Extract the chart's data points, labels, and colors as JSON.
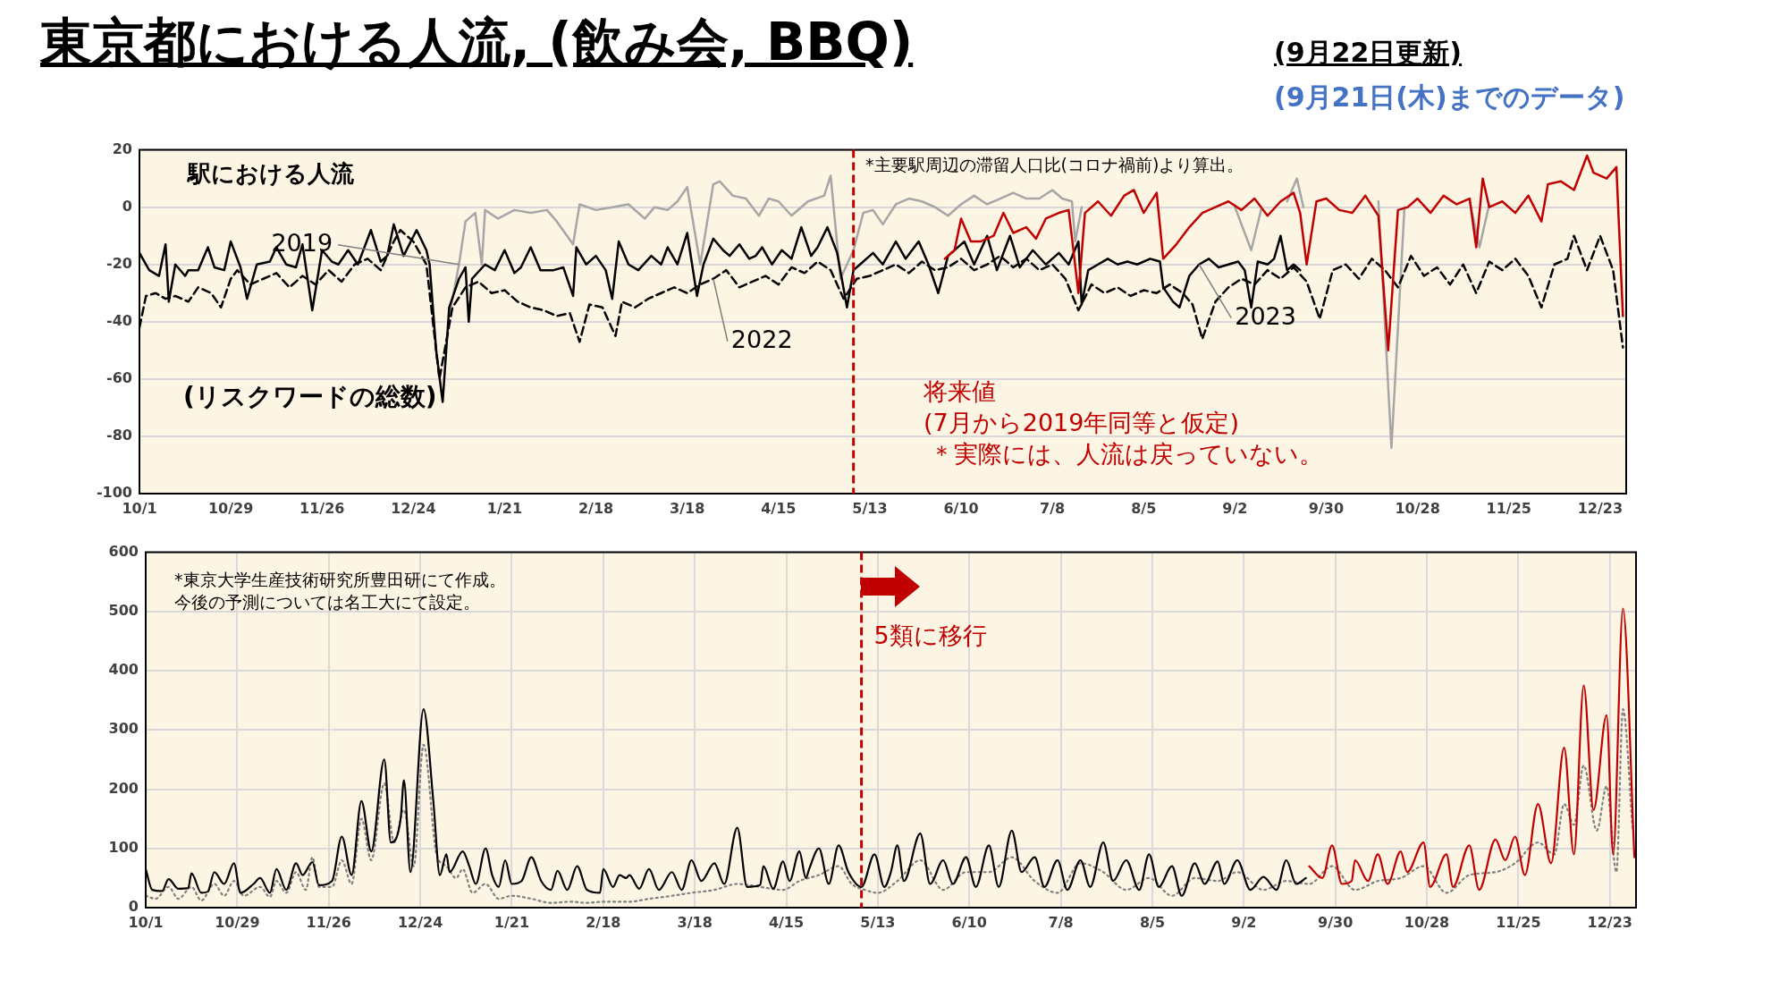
{
  "chart_data": [
    {
      "type": "line",
      "title": "東京都における人流, (飲み会, BBQ)",
      "subtitle": "(9月22日更新)",
      "annotations": [
        "(9月21日(木)までのデータ)",
        "駅における人流",
        "*主要駅周辺の滞留人口比(コロナ禍前)より算出。",
        "将来値",
        "(7月から2019年同等と仮定)",
        "＊実際には、人流は戻っていない。"
      ],
      "xlim": [
        "2022-10-01",
        "2023-12-31"
      ],
      "ylim": [
        -100,
        20
      ],
      "yticks": [
        -100,
        -80,
        -60,
        -40,
        -20,
        0,
        20
      ],
      "xticks": [
        {
          "value": "2022-10-01",
          "label": "10/1"
        },
        {
          "value": "2022-10-29",
          "label": "10/29"
        },
        {
          "value": "2022-11-26",
          "label": "11/26"
        },
        {
          "value": "2022-12-24",
          "label": "12/24"
        },
        {
          "value": "2023-01-21",
          "label": "1/21"
        },
        {
          "value": "2023-02-18",
          "label": "2/18"
        },
        {
          "value": "2023-03-18",
          "label": "3/18"
        },
        {
          "value": "2023-04-15",
          "label": "4/15"
        },
        {
          "value": "2023-05-13",
          "label": "5/13"
        },
        {
          "value": "2023-06-10",
          "label": "6/10"
        },
        {
          "value": "2023-07-08",
          "label": "7/8"
        },
        {
          "value": "2023-08-05",
          "label": "8/5"
        },
        {
          "value": "2023-09-02",
          "label": "9/2"
        },
        {
          "value": "2023-09-30",
          "label": "9/30"
        },
        {
          "value": "2023-10-28",
          "label": "10/28"
        },
        {
          "value": "2023-11-25",
          "label": "11/25"
        },
        {
          "value": "2023-12-23",
          "label": "12/23"
        }
      ],
      "grid": "y",
      "marker": "none",
      "ref_lines": [
        {
          "axis": "x",
          "value": "2023-05-08",
          "color": "#c00000",
          "line_style": "dashed"
        }
      ],
      "series": [
        {
          "name": "2019",
          "color": "#a6a6a6",
          "line_style": "solid",
          "x": [
            "2023-01-04",
            "2023-01-07",
            "2023-01-09",
            "2023-01-12",
            "2023-01-14",
            "2023-01-15",
            "2023-01-19",
            "2023-01-24",
            "2023-01-29",
            "2023-02-03",
            "2023-02-06",
            "2023-02-11",
            "2023-02-13",
            "2023-02-18",
            "2023-02-23",
            "2023-02-28",
            "2023-03-05",
            "2023-03-08",
            "2023-03-12",
            "2023-03-15",
            "2023-03-18",
            "2023-03-22",
            "2023-03-26",
            "2023-03-28",
            "2023-04-01",
            "2023-04-05",
            "2023-04-09",
            "2023-04-12",
            "2023-04-15",
            "2023-04-19",
            "2023-04-24",
            "2023-04-29",
            "2023-05-01",
            "2023-05-04",
            "2023-05-08",
            "2023-05-11",
            "2023-05-14",
            "2023-05-17",
            "2023-05-21",
            "2023-05-25",
            "2023-05-29",
            "2023-06-02",
            "2023-06-06",
            "2023-06-10",
            "2023-06-14",
            "2023-06-18",
            "2023-06-22",
            "2023-06-26",
            "2023-06-30",
            "2023-07-04",
            "2023-07-08",
            "2023-07-11",
            "2023-07-14",
            "2023-07-15",
            "2023-07-17",
            "2023-07-28",
            "2023-09-02",
            "2023-09-07",
            "2023-09-10",
            "2023-09-14",
            "2023-09-18",
            "2023-09-21",
            "2023-09-23",
            "2023-10-06",
            "2023-10-16",
            "2023-10-20",
            "2023-10-24",
            "2023-11-05",
            "2023-11-13",
            "2023-11-16",
            "2023-11-19"
          ],
          "values": [
            -38,
            -20,
            -5,
            -2,
            -20,
            -1,
            -4,
            -1,
            -2,
            -1,
            -5,
            -13,
            1,
            -1,
            0,
            1,
            -4,
            0,
            -1,
            2,
            7,
            -20,
            8,
            9,
            4,
            3,
            -3,
            3,
            2,
            -3,
            2,
            4,
            11,
            -25,
            -15,
            -2,
            -1,
            -6,
            1,
            3,
            2,
            0,
            -3,
            1,
            4,
            1,
            3,
            5,
            3,
            3,
            6,
            3,
            2,
            -12,
            0,
            null,
            0,
            -15,
            -1,
            null,
            2,
            10,
            0,
            null,
            2,
            -84,
            0,
            null,
            2,
            -14,
            1
          ]
        },
        {
          "name": "2022",
          "color": "#000000",
          "line_style": "dashed",
          "x": [
            "2022-10-01",
            "2022-10-03",
            "2022-10-06",
            "2022-10-09",
            "2022-10-12",
            "2022-10-16",
            "2022-10-19",
            "2022-10-23",
            "2022-10-26",
            "2022-10-29",
            "2022-10-31",
            "2022-11-04",
            "2022-11-08",
            "2022-11-12",
            "2022-11-16",
            "2022-11-20",
            "2022-11-24",
            "2022-11-28",
            "2022-12-02",
            "2022-12-06",
            "2022-12-10",
            "2022-12-14",
            "2022-12-18",
            "2022-12-20",
            "2022-12-24",
            "2022-12-28",
            "2023-01-01",
            "2023-01-05",
            "2023-01-09",
            "2023-01-13",
            "2023-01-17",
            "2023-01-21",
            "2023-01-25",
            "2023-01-29",
            "2023-02-02",
            "2023-02-06",
            "2023-02-10",
            "2023-02-13",
            "2023-02-16",
            "2023-02-20",
            "2023-02-24",
            "2023-02-26",
            "2023-03-02",
            "2023-03-06",
            "2023-03-10",
            "2023-03-14",
            "2023-03-18",
            "2023-03-22",
            "2023-03-26",
            "2023-03-30",
            "2023-04-03",
            "2023-04-07",
            "2023-04-11",
            "2023-04-15",
            "2023-04-19",
            "2023-04-23",
            "2023-04-27",
            "2023-05-01",
            "2023-05-05",
            "2023-05-09",
            "2023-05-13",
            "2023-05-17",
            "2023-05-21",
            "2023-05-25",
            "2023-05-29",
            "2023-06-02",
            "2023-06-06",
            "2023-06-10",
            "2023-06-14",
            "2023-06-18",
            "2023-06-22",
            "2023-06-26",
            "2023-06-30",
            "2023-07-04",
            "2023-07-08",
            "2023-07-12",
            "2023-07-16",
            "2023-07-20",
            "2023-07-24",
            "2023-07-28",
            "2023-08-01",
            "2023-08-05",
            "2023-08-09",
            "2023-08-13",
            "2023-08-17",
            "2023-08-20",
            "2023-08-23",
            "2023-08-27",
            "2023-08-31",
            "2023-09-04",
            "2023-09-08",
            "2023-09-12",
            "2023-09-16",
            "2023-09-20",
            "2023-09-24",
            "2023-09-28",
            "2023-10-02",
            "2023-10-06",
            "2023-10-10",
            "2023-10-14",
            "2023-10-18",
            "2023-10-22",
            "2023-10-26",
            "2023-10-30",
            "2023-11-03",
            "2023-11-07",
            "2023-11-11",
            "2023-11-15",
            "2023-11-19",
            "2023-11-23",
            "2023-11-27",
            "2023-12-01",
            "2023-12-05",
            "2023-12-09",
            "2023-12-13",
            "2023-12-15",
            "2023-12-19",
            "2023-12-23",
            "2023-12-27",
            "2023-12-30"
          ],
          "values": [
            -42,
            -31,
            -30,
            -32,
            -31,
            -33,
            -28,
            -30,
            -35,
            -25,
            -22,
            -27,
            -25,
            -23,
            -28,
            -24,
            -27,
            -22,
            -26,
            -20,
            -18,
            -22,
            -12,
            -8,
            -12,
            -20,
            -60,
            -35,
            -28,
            -26,
            -30,
            -29,
            -33,
            -35,
            -36,
            -38,
            -37,
            -47,
            -34,
            -35,
            -45,
            -33,
            -35,
            -32,
            -30,
            -28,
            -30,
            -27,
            -25,
            -22,
            -28,
            -26,
            -24,
            -27,
            -21,
            -23,
            -19,
            -22,
            -32,
            -25,
            -24,
            -22,
            -20,
            -23,
            -19,
            -22,
            -21,
            -18,
            -22,
            -20,
            -17,
            -21,
            -18,
            -22,
            -20,
            -25,
            -36,
            -27,
            -30,
            -28,
            -31,
            -29,
            -30,
            -27,
            -30,
            -34,
            -46,
            -33,
            -28,
            -25,
            -27,
            -22,
            -25,
            -21,
            -26,
            -39,
            -22,
            -20,
            -25,
            -18,
            -22,
            -28,
            -17,
            -24,
            -21,
            -27,
            -20,
            -30,
            -19,
            -22,
            -18,
            -24,
            -35,
            -20,
            -18,
            -10,
            -22,
            -10,
            -22,
            -49
          ]
        },
        {
          "name": "2023",
          "color": "#000000",
          "line_style": "solid",
          "x": [
            "2022-10-01",
            "2022-10-04",
            "2022-10-07",
            "2022-10-09",
            "2022-10-10",
            "2022-10-12",
            "2022-10-15",
            "2022-10-16",
            "2022-10-19",
            "2022-10-22",
            "2022-10-24",
            "2022-10-27",
            "2022-10-29",
            "2022-11-01",
            "2022-11-03",
            "2022-11-06",
            "2022-11-10",
            "2022-11-12",
            "2022-11-15",
            "2022-11-18",
            "2022-11-20",
            "2022-11-23",
            "2022-11-26",
            "2022-11-29",
            "2022-12-01",
            "2022-12-04",
            "2022-12-07",
            "2022-12-11",
            "2022-12-14",
            "2022-12-16",
            "2022-12-18",
            "2022-12-21",
            "2022-12-25",
            "2022-12-28",
            "2022-12-29",
            "2022-12-31",
            "2023-01-02",
            "2023-01-04",
            "2023-01-07",
            "2023-01-09",
            "2023-01-10",
            "2023-01-11",
            "2023-01-15",
            "2023-01-18",
            "2023-01-21",
            "2023-01-24",
            "2023-01-26",
            "2023-01-29",
            "2023-02-01",
            "2023-02-05",
            "2023-02-08",
            "2023-02-11",
            "2023-02-12",
            "2023-02-15",
            "2023-02-18",
            "2023-02-21",
            "2023-02-23",
            "2023-02-25",
            "2023-02-28",
            "2023-03-03",
            "2023-03-07",
            "2023-03-10",
            "2023-03-12",
            "2023-03-15",
            "2023-03-18",
            "2023-03-21",
            "2023-03-23",
            "2023-03-26",
            "2023-03-29",
            "2023-03-31",
            "2023-04-03",
            "2023-04-06",
            "2023-04-08",
            "2023-04-10",
            "2023-04-13",
            "2023-04-16",
            "2023-04-19",
            "2023-04-22",
            "2023-04-25",
            "2023-04-27",
            "2023-04-30",
            "2023-05-03",
            "2023-05-06",
            "2023-05-08",
            "2023-05-10",
            "2023-05-14",
            "2023-05-17",
            "2023-05-21",
            "2023-05-24",
            "2023-05-28",
            "2023-05-31",
            "2023-06-03",
            "2023-06-06",
            "2023-06-11",
            "2023-06-14",
            "2023-06-18",
            "2023-06-21",
            "2023-06-25",
            "2023-06-28",
            "2023-07-02",
            "2023-07-06",
            "2023-07-10",
            "2023-07-13",
            "2023-07-16",
            "2023-07-17",
            "2023-07-19",
            "2023-07-22",
            "2023-07-25",
            "2023-07-28",
            "2023-07-31",
            "2023-08-03",
            "2023-08-07",
            "2023-08-10",
            "2023-08-11",
            "2023-08-14",
            "2023-08-16",
            "2023-08-19",
            "2023-08-22",
            "2023-08-25",
            "2023-08-28",
            "2023-08-31",
            "2023-09-03",
            "2023-09-05",
            "2023-09-07",
            "2023-09-09",
            "2023-09-12",
            "2023-09-14",
            "2023-09-16",
            "2023-09-18",
            "2023-09-20",
            "2023-09-22"
          ],
          "values": [
            -16,
            -22,
            -24,
            -13,
            -33,
            -20,
            -24,
            -22,
            -22,
            -14,
            -21,
            -22,
            -12,
            -21,
            -32,
            -20,
            -19,
            -14,
            -20,
            -21,
            -13,
            -36,
            -15,
            -19,
            -20,
            -15,
            -20,
            -8,
            -19,
            -17,
            -6,
            -17,
            -8,
            -15,
            -20,
            -50,
            -68,
            -35,
            -25,
            -21,
            -40,
            -25,
            -20,
            -22,
            -15,
            -23,
            -21,
            -14,
            -22,
            -22,
            -21,
            -31,
            -14,
            -20,
            -17,
            -22,
            -32,
            -12,
            -20,
            -22,
            -17,
            -20,
            -14,
            -20,
            -9,
            -31,
            -20,
            -11,
            -15,
            -17,
            -13,
            -18,
            -17,
            -14,
            -20,
            -15,
            -18,
            -7,
            -17,
            -14,
            -7,
            -16,
            -35,
            -22,
            -20,
            -16,
            -20,
            -12,
            -18,
            -12,
            -20,
            -30,
            -17,
            -12,
            -20,
            -10,
            -22,
            -10,
            -21,
            -15,
            -20,
            -16,
            -20,
            -12,
            -34,
            -22,
            -20,
            -18,
            -20,
            -19,
            -20,
            -18,
            -19,
            -28,
            -33,
            -35,
            -24,
            -20,
            -18,
            -21,
            -20,
            -19,
            -22,
            -35,
            -19,
            -20,
            -18,
            -10,
            -22,
            -20,
            -22
          ]
        },
        {
          "color": "#c00000",
          "line_style": "solid",
          "x": [
            "2023-06-05",
            "2023-06-08",
            "2023-06-10",
            "2023-06-13",
            "2023-06-16",
            "2023-06-20",
            "2023-06-23",
            "2023-06-26",
            "2023-06-30",
            "2023-07-03",
            "2023-07-06",
            "2023-07-10",
            "2023-07-13",
            "2023-07-16",
            "2023-07-18",
            "2023-07-22",
            "2023-07-26",
            "2023-07-30",
            "2023-08-02",
            "2023-08-05",
            "2023-08-09",
            "2023-08-11",
            "2023-08-15",
            "2023-08-19",
            "2023-08-23",
            "2023-08-27",
            "2023-08-31",
            "2023-09-04",
            "2023-09-08",
            "2023-09-12",
            "2023-09-16",
            "2023-09-20",
            "2023-09-22",
            "2023-09-24",
            "2023-09-27",
            "2023-09-30",
            "2023-10-04",
            "2023-10-08",
            "2023-10-12",
            "2023-10-16",
            "2023-10-19",
            "2023-10-22",
            "2023-10-25",
            "2023-10-28",
            "2023-11-01",
            "2023-11-05",
            "2023-11-09",
            "2023-11-13",
            "2023-11-15",
            "2023-11-17",
            "2023-11-19",
            "2023-11-23",
            "2023-11-27",
            "2023-12-01",
            "2023-12-05",
            "2023-12-07",
            "2023-12-11",
            "2023-12-15",
            "2023-12-19",
            "2023-12-21",
            "2023-12-25",
            "2023-12-28",
            "2023-12-30"
          ],
          "values": [
            -18,
            -15,
            -4,
            -12,
            -12,
            -10,
            -2,
            -9,
            -7,
            -11,
            -4,
            -2,
            -1,
            -30,
            -2,
            2,
            -3,
            4,
            6,
            -2,
            5,
            -18,
            -13,
            -7,
            -2,
            0,
            2,
            -1,
            3,
            -3,
            2,
            5,
            -2,
            -20,
            2,
            3,
            -1,
            -2,
            4,
            -3,
            -50,
            -1,
            0,
            3,
            -2,
            4,
            1,
            3,
            -14,
            10,
            0,
            2,
            -2,
            4,
            -5,
            8,
            9,
            6,
            18,
            12,
            10,
            14,
            -38
          ]
        }
      ]
    },
    {
      "type": "line",
      "title": "(リスクワードの総数)",
      "annotations": [
        "*東京大学生産技術研究所豊田研にて作成。",
        "今後の予測については名工大にて設定。"
      ],
      "xlim": [
        "2022-10-01",
        "2023-12-31"
      ],
      "ylim": [
        0,
        600
      ],
      "yticks": [
        0,
        100,
        200,
        300,
        400,
        500,
        600
      ],
      "xticks": [
        {
          "value": "2022-10-01",
          "label": "10/1"
        },
        {
          "value": "2022-10-29",
          "label": "10/29"
        },
        {
          "value": "2022-11-26",
          "label": "11/26"
        },
        {
          "value": "2022-12-24",
          "label": "12/24"
        },
        {
          "value": "2023-01-21",
          "label": "1/21"
        },
        {
          "value": "2023-02-18",
          "label": "2/18"
        },
        {
          "value": "2023-03-18",
          "label": "3/18"
        },
        {
          "value": "2023-04-15",
          "label": "4/15"
        },
        {
          "value": "2023-05-13",
          "label": "5/13"
        },
        {
          "value": "2023-06-10",
          "label": "6/10"
        },
        {
          "value": "2023-07-08",
          "label": "7/8"
        },
        {
          "value": "2023-08-05",
          "label": "8/5"
        },
        {
          "value": "2023-09-02",
          "label": "9/2"
        },
        {
          "value": "2023-09-30",
          "label": "9/30"
        },
        {
          "value": "2023-10-28",
          "label": "10/28"
        },
        {
          "value": "2023-11-25",
          "label": "11/25"
        },
        {
          "value": "2023-12-23",
          "label": "12/23"
        }
      ],
      "grid": true,
      "marker": "none",
      "ref_lines": [
        {
          "axis": "x",
          "value": "2023-05-08",
          "label": "5類に移行",
          "color": "#c00000",
          "line_style": "dashed"
        }
      ],
      "series": [
        {
          "color": "#808080",
          "line_style": "dotted",
          "x": [
            "2022-10-01",
            "2022-10-04",
            "2022-10-08",
            "2022-10-11",
            "2022-10-15",
            "2022-10-18",
            "2022-10-22",
            "2022-10-25",
            "2022-10-28",
            "2022-10-31",
            "2022-11-05",
            "2022-11-08",
            "2022-11-10",
            "2022-11-13",
            "2022-11-16",
            "2022-11-19",
            "2022-11-21",
            "2022-11-23",
            "2022-11-27",
            "2022-11-30",
            "2022-12-03",
            "2022-12-06",
            "2022-12-09",
            "2022-12-13",
            "2022-12-16",
            "2022-12-19",
            "2022-12-22",
            "2022-12-25",
            "2022-12-29",
            "2023-01-01",
            "2023-01-04",
            "2023-01-06",
            "2023-01-09",
            "2023-01-13",
            "2023-01-17",
            "2023-01-21",
            "2023-01-27",
            "2023-02-02",
            "2023-02-08",
            "2023-02-13",
            "2023-02-18",
            "2023-02-26",
            "2023-03-04",
            "2023-03-11",
            "2023-03-17",
            "2023-03-24",
            "2023-03-31",
            "2023-04-07",
            "2023-04-14",
            "2023-04-19",
            "2023-04-25",
            "2023-05-01",
            "2023-05-05",
            "2023-05-09",
            "2023-05-13",
            "2023-05-19",
            "2023-05-26",
            "2023-06-02",
            "2023-06-09",
            "2023-06-16",
            "2023-06-23",
            "2023-06-30",
            "2023-07-07",
            "2023-07-14",
            "2023-07-21",
            "2023-07-28",
            "2023-08-04",
            "2023-08-11",
            "2023-08-18",
            "2023-08-25",
            "2023-08-31",
            "2023-09-08",
            "2023-09-15",
            "2023-09-22",
            "2023-09-29",
            "2023-10-06",
            "2023-10-13",
            "2023-10-20",
            "2023-10-27",
            "2023-11-03",
            "2023-11-10",
            "2023-11-18",
            "2023-11-24",
            "2023-12-01",
            "2023-12-06",
            "2023-12-09",
            "2023-12-12",
            "2023-12-15",
            "2023-12-19",
            "2023-12-22",
            "2023-12-25",
            "2023-12-27",
            "2023-12-30"
          ],
          "values": [
            20,
            15,
            35,
            15,
            35,
            12,
            40,
            20,
            45,
            20,
            35,
            18,
            45,
            25,
            60,
            30,
            85,
            35,
            35,
            80,
            40,
            150,
            80,
            210,
            110,
            165,
            70,
            275,
            90,
            70,
            50,
            65,
            25,
            40,
            15,
            20,
            15,
            8,
            10,
            8,
            10,
            10,
            15,
            20,
            25,
            30,
            40,
            35,
            30,
            45,
            55,
            70,
            40,
            30,
            25,
            45,
            80,
            30,
            60,
            60,
            85,
            45,
            25,
            75,
            60,
            30,
            50,
            20,
            50,
            45,
            60,
            30,
            45,
            40,
            70,
            30,
            45,
            50,
            70,
            25,
            55,
            60,
            75,
            110,
            90,
            175,
            140,
            240,
            130,
            205,
            60,
            335,
            130
          ]
        },
        {
          "color": "#000000",
          "line_style": "solid",
          "x": [
            "2022-10-01",
            "2022-10-03",
            "2022-10-06",
            "2022-10-08",
            "2022-10-11",
            "2022-10-14",
            "2022-10-15",
            "2022-10-18",
            "2022-10-20",
            "2022-10-22",
            "2022-10-25",
            "2022-10-28",
            "2022-10-30",
            "2022-11-03",
            "2022-11-05",
            "2022-11-08",
            "2022-11-10",
            "2022-11-13",
            "2022-11-16",
            "2022-11-18",
            "2022-11-21",
            "2022-11-23",
            "2022-11-27",
            "2022-11-30",
            "2022-12-03",
            "2022-12-06",
            "2022-12-09",
            "2022-12-13",
            "2022-12-15",
            "2022-12-18",
            "2022-12-19",
            "2022-12-21",
            "2022-12-25",
            "2022-12-28",
            "2022-12-30",
            "2023-01-01",
            "2023-01-02",
            "2023-01-06",
            "2023-01-08",
            "2023-01-10",
            "2023-01-13",
            "2023-01-15",
            "2023-01-17",
            "2023-01-19",
            "2023-01-21",
            "2023-01-24",
            "2023-01-27",
            "2023-01-30",
            "2023-02-02",
            "2023-02-04",
            "2023-02-07",
            "2023-02-10",
            "2023-02-13",
            "2023-02-17",
            "2023-02-18",
            "2023-02-21",
            "2023-02-23",
            "2023-02-25",
            "2023-02-26",
            "2023-03-01",
            "2023-03-04",
            "2023-03-07",
            "2023-03-11",
            "2023-03-14",
            "2023-03-17",
            "2023-03-20",
            "2023-03-24",
            "2023-03-27",
            "2023-03-31",
            "2023-04-03",
            "2023-04-07",
            "2023-04-08",
            "2023-04-11",
            "2023-04-14",
            "2023-04-16",
            "2023-04-19",
            "2023-04-21",
            "2023-04-22",
            "2023-04-25",
            "2023-04-28",
            "2023-05-01",
            "2023-05-04",
            "2023-05-08",
            "2023-05-12",
            "2023-05-15",
            "2023-05-17",
            "2023-05-19",
            "2023-05-21",
            "2023-05-26",
            "2023-05-29",
            "2023-06-02",
            "2023-06-05",
            "2023-06-09",
            "2023-06-12",
            "2023-06-16",
            "2023-06-19",
            "2023-06-23",
            "2023-06-26",
            "2023-06-30",
            "2023-07-03",
            "2023-07-07",
            "2023-07-10",
            "2023-07-14",
            "2023-07-17",
            "2023-07-21",
            "2023-07-24",
            "2023-07-28",
            "2023-08-01",
            "2023-08-04",
            "2023-08-07",
            "2023-08-11",
            "2023-08-14",
            "2023-08-18",
            "2023-08-21",
            "2023-08-25",
            "2023-08-27",
            "2023-08-31",
            "2023-09-04",
            "2023-09-08",
            "2023-09-12",
            "2023-09-15",
            "2023-09-18",
            "2023-09-21"
          ],
          "values": [
            65,
            30,
            28,
            48,
            32,
            33,
            58,
            25,
            27,
            60,
            40,
            75,
            25,
            40,
            50,
            25,
            65,
            30,
            75,
            55,
            77,
            38,
            45,
            120,
            55,
            180,
            95,
            250,
            110,
            150,
            215,
            60,
            335,
            180,
            55,
            90,
            60,
            95,
            70,
            40,
            100,
            55,
            35,
            80,
            40,
            45,
            85,
            45,
            30,
            62,
            30,
            70,
            30,
            25,
            65,
            35,
            55,
            50,
            55,
            32,
            65,
            30,
            60,
            30,
            80,
            45,
            75,
            40,
            135,
            35,
            38,
            70,
            32,
            78,
            45,
            95,
            50,
            65,
            100,
            40,
            105,
            60,
            35,
            90,
            35,
            60,
            105,
            45,
            125,
            40,
            80,
            40,
            85,
            35,
            105,
            35,
            130,
            60,
            85,
            35,
            80,
            30,
            80,
            35,
            110,
            45,
            80,
            30,
            90,
            35,
            70,
            20,
            75,
            40,
            78,
            40,
            80,
            30,
            52,
            30,
            80,
            40,
            50
          ]
        },
        {
          "color": "#c00000",
          "line_style": "solid",
          "x": [
            "2023-09-22",
            "2023-09-26",
            "2023-09-29",
            "2023-10-02",
            "2023-10-05",
            "2023-10-06",
            "2023-10-10",
            "2023-10-13",
            "2023-10-16",
            "2023-10-20",
            "2023-10-22",
            "2023-10-27",
            "2023-10-29",
            "2023-11-03",
            "2023-11-05",
            "2023-11-10",
            "2023-11-13",
            "2023-11-18",
            "2023-11-21",
            "2023-11-24",
            "2023-11-27",
            "2023-12-01",
            "2023-12-05",
            "2023-12-09",
            "2023-12-12",
            "2023-12-15",
            "2023-12-18",
            "2023-12-22",
            "2023-12-24",
            "2023-12-27",
            "2023-12-30T12:00"
          ],
          "values": [
            70,
            50,
            105,
            40,
            45,
            80,
            45,
            90,
            40,
            95,
            60,
            110,
            35,
            90,
            35,
            105,
            30,
            115,
            80,
            120,
            55,
            175,
            75,
            270,
            90,
            375,
            165,
            325,
            90,
            505,
            85
          ]
        }
      ]
    }
  ]
}
